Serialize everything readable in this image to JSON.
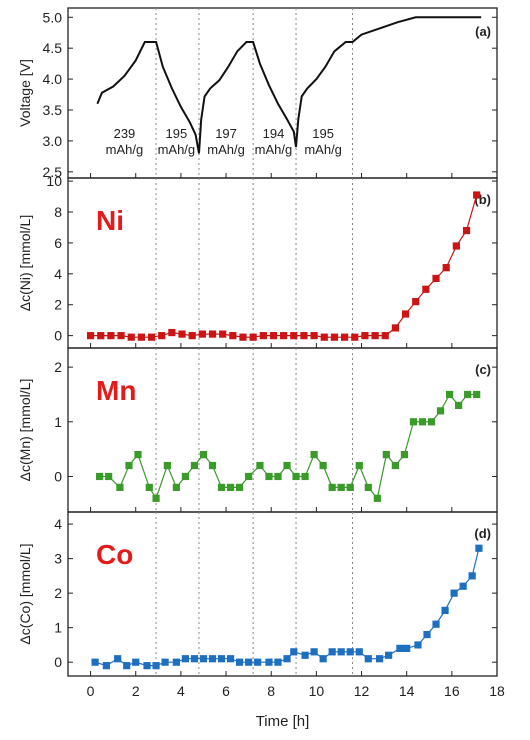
{
  "chart_data": {
    "type": "multi-panel line",
    "xlabel": "Time [h]",
    "xlim": [
      -1,
      18
    ],
    "xticks": [
      "0",
      "2",
      "4",
      "6",
      "8",
      "10",
      "12",
      "14",
      "16",
      "18"
    ],
    "cycle_boundaries_h": [
      2.9,
      4.8,
      7.2,
      9.1,
      11.6
    ],
    "panels": [
      {
        "id": "a",
        "label": "(a)",
        "ylabel": "Voltage [V]",
        "ylim": [
          2.4,
          5.15
        ],
        "yticks": [
          "2.5",
          "3.0",
          "3.5",
          "4.0",
          "4.5",
          "5.0"
        ],
        "color": "#111111",
        "marker": "none",
        "annotations": [
          {
            "value": "239",
            "unit": "mAh/g",
            "x": 1.5
          },
          {
            "value": "195",
            "unit": "mAh/g",
            "x": 3.8
          },
          {
            "value": "197",
            "unit": "mAh/g",
            "x": 6.0
          },
          {
            "value": "194",
            "unit": "mAh/g",
            "x": 8.1
          },
          {
            "value": "195",
            "unit": "mAh/g",
            "x": 10.3
          }
        ],
        "x": [
          0.3,
          0.5,
          1.0,
          1.5,
          2.0,
          2.4,
          2.7,
          2.9,
          3.2,
          3.6,
          4.0,
          4.4,
          4.65,
          4.8,
          4.9,
          5.05,
          5.3,
          5.7,
          6.1,
          6.5,
          6.9,
          7.2,
          7.5,
          7.9,
          8.3,
          8.7,
          9.0,
          9.1,
          9.2,
          9.35,
          9.6,
          10.0,
          10.4,
          10.8,
          11.3,
          11.6,
          12.0,
          12.8,
          13.6,
          14.4,
          15.0,
          16.0,
          17.0,
          17.3
        ],
        "y": [
          3.6,
          3.78,
          3.88,
          4.05,
          4.3,
          4.6,
          4.6,
          4.6,
          4.2,
          3.85,
          3.55,
          3.3,
          3.1,
          2.8,
          3.35,
          3.72,
          3.85,
          3.98,
          4.2,
          4.45,
          4.6,
          4.6,
          4.25,
          3.9,
          3.6,
          3.35,
          3.15,
          2.9,
          3.35,
          3.72,
          3.85,
          4.0,
          4.2,
          4.45,
          4.6,
          4.6,
          4.72,
          4.82,
          4.92,
          5.0,
          5.0,
          5.0,
          5.0,
          5.0
        ]
      },
      {
        "id": "b",
        "label": "(b)",
        "ylabel": "Δc(Ni) [mmol/L]",
        "element": "Ni",
        "ylim": [
          -0.8,
          10.2
        ],
        "yticks": [
          "0",
          "2",
          "4",
          "6",
          "8",
          "10"
        ],
        "color": "#cc1414",
        "marker": "square",
        "x": [
          0.0,
          0.45,
          0.9,
          1.35,
          1.8,
          2.25,
          2.7,
          3.15,
          3.6,
          4.05,
          4.5,
          4.95,
          5.4,
          5.85,
          6.3,
          6.75,
          7.2,
          7.65,
          8.1,
          8.55,
          9.0,
          9.45,
          9.9,
          10.35,
          10.8,
          11.25,
          11.7,
          12.15,
          12.6,
          13.05,
          13.5,
          13.95,
          14.4,
          14.85,
          15.3,
          15.75,
          16.2,
          16.65,
          17.1
        ],
        "y": [
          0.0,
          0.0,
          0.0,
          0.0,
          -0.1,
          -0.1,
          -0.1,
          0.0,
          0.2,
          0.1,
          0.0,
          0.1,
          0.1,
          0.1,
          0.0,
          -0.1,
          -0.1,
          0.0,
          0.0,
          0.0,
          0.0,
          0.0,
          0.0,
          -0.1,
          -0.1,
          -0.1,
          -0.1,
          0.0,
          0.0,
          0.0,
          0.5,
          1.4,
          2.2,
          3.0,
          3.7,
          4.4,
          5.8,
          6.8,
          9.1
        ]
      },
      {
        "id": "c",
        "label": "(c)",
        "ylabel": "Δc(Mn) [mmol/L]",
        "element": "Mn",
        "ylim": [
          -0.65,
          2.35
        ],
        "yticks": [
          "0",
          "1",
          "2"
        ],
        "color": "#3a9a2a",
        "marker": "square",
        "x": [
          0.4,
          0.8,
          1.3,
          1.7,
          2.1,
          2.6,
          2.9,
          3.4,
          3.8,
          4.2,
          4.6,
          5.0,
          5.4,
          5.8,
          6.2,
          6.6,
          7.0,
          7.5,
          7.9,
          8.3,
          8.7,
          9.1,
          9.5,
          9.9,
          10.3,
          10.7,
          11.1,
          11.5,
          11.9,
          12.3,
          12.7,
          13.1,
          13.5,
          13.9,
          14.3,
          14.7,
          15.1,
          15.5,
          15.9,
          16.3,
          16.7,
          17.1
        ],
        "y": [
          0.0,
          0.0,
          -0.2,
          0.2,
          0.4,
          -0.2,
          -0.4,
          0.2,
          -0.2,
          0.0,
          0.2,
          0.4,
          0.2,
          -0.2,
          -0.2,
          -0.2,
          0.0,
          0.2,
          0.0,
          0.0,
          0.2,
          0.0,
          0.0,
          0.4,
          0.2,
          -0.2,
          -0.2,
          -0.2,
          0.2,
          -0.2,
          -0.4,
          0.4,
          0.2,
          0.4,
          1.0,
          1.0,
          1.0,
          1.2,
          1.5,
          1.3,
          1.5,
          1.5
        ]
      },
      {
        "id": "d",
        "label": "(d)",
        "ylabel": "Δc(Co) [mmol/L]",
        "element": "Co",
        "ylim": [
          -0.4,
          4.35
        ],
        "yticks": [
          "0",
          "1",
          "2",
          "3",
          "4"
        ],
        "color": "#1f6fc1",
        "marker": "square",
        "x": [
          0.2,
          0.7,
          1.2,
          1.6,
          2.0,
          2.5,
          2.9,
          3.3,
          3.8,
          4.2,
          4.6,
          5.0,
          5.4,
          5.8,
          6.2,
          6.6,
          7.0,
          7.4,
          7.9,
          8.3,
          8.7,
          9.0,
          9.5,
          9.9,
          10.3,
          10.7,
          11.1,
          11.5,
          11.9,
          12.3,
          12.8,
          13.2,
          13.7,
          14.0,
          14.5,
          14.9,
          15.3,
          15.7,
          16.1,
          16.5,
          16.9,
          17.2
        ],
        "y": [
          0.0,
          -0.1,
          0.1,
          -0.1,
          0.0,
          -0.1,
          -0.1,
          0.0,
          0.0,
          0.1,
          0.1,
          0.1,
          0.1,
          0.1,
          0.1,
          0.0,
          0.0,
          0.0,
          0.0,
          0.0,
          0.1,
          0.3,
          0.2,
          0.3,
          0.1,
          0.3,
          0.3,
          0.3,
          0.3,
          0.1,
          0.1,
          0.2,
          0.4,
          0.4,
          0.5,
          0.8,
          1.1,
          1.5,
          2.0,
          2.2,
          2.5,
          3.3
        ]
      }
    ]
  }
}
